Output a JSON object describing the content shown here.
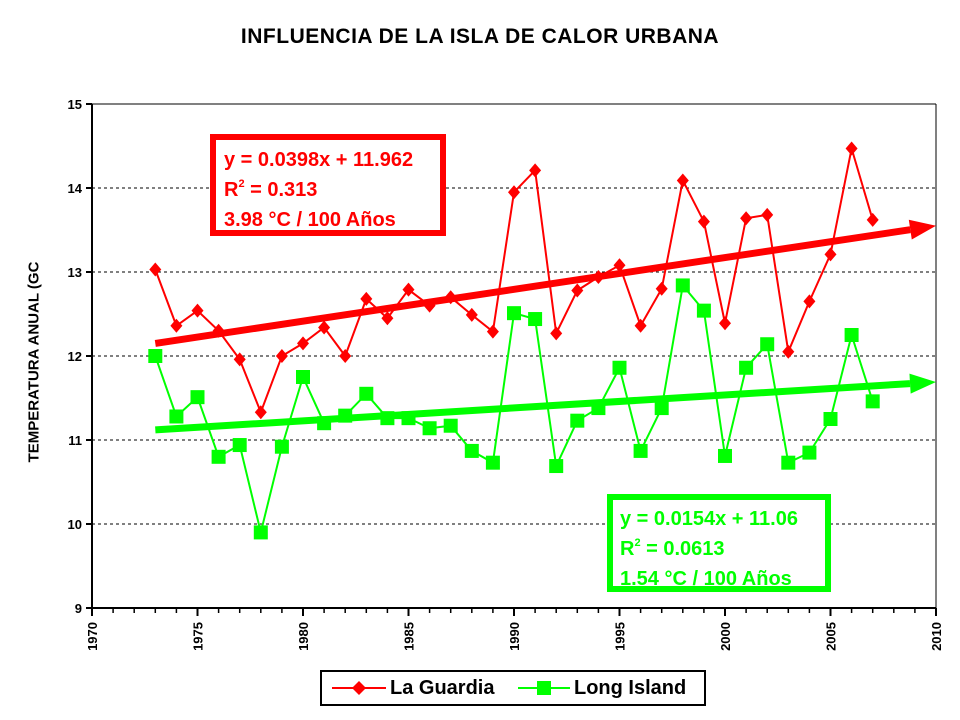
{
  "chart_data": {
    "type": "line",
    "title": "INFLUENCIA DE LA ISLA DE CALOR URBANA",
    "ylabel": "TEMPERATURA ANUAL (GC",
    "xlabel": "",
    "xlim": [
      1970,
      2010
    ],
    "ylim": [
      9,
      15
    ],
    "x_ticks": [
      "1970",
      "1975",
      "1980",
      "1985",
      "1990",
      "1995",
      "2000",
      "2005",
      "2010"
    ],
    "y_ticks": [
      "9",
      "10",
      "11",
      "12",
      "13",
      "14",
      "15"
    ],
    "grid": "horizontal dashed",
    "legend_position": "bottom",
    "series": [
      {
        "name": "La Guardia",
        "color": "#ff0000",
        "marker": "diamond",
        "x": [
          1973,
          1974,
          1975,
          1976,
          1977,
          1978,
          1979,
          1980,
          1981,
          1982,
          1983,
          1984,
          1985,
          1986,
          1987,
          1988,
          1989,
          1990,
          1991,
          1992,
          1993,
          1994,
          1995,
          1996,
          1997,
          1998,
          1999,
          2000,
          2001,
          2002,
          2003,
          2004,
          2005,
          2006,
          2007
        ],
        "values": [
          13.03,
          12.36,
          12.54,
          12.3,
          11.96,
          11.33,
          12.0,
          12.15,
          12.34,
          12.0,
          12.68,
          12.45,
          12.79,
          12.6,
          12.7,
          12.49,
          12.29,
          13.95,
          14.21,
          12.27,
          12.78,
          12.94,
          13.08,
          12.36,
          12.8,
          14.09,
          13.6,
          12.39,
          13.64,
          13.68,
          12.05,
          12.65,
          13.21,
          14.47,
          13.62
        ]
      },
      {
        "name": "Long Island",
        "color": "#00ff00",
        "marker": "square",
        "x": [
          1973,
          1974,
          1975,
          1976,
          1977,
          1978,
          1979,
          1980,
          1981,
          1982,
          1983,
          1984,
          1985,
          1986,
          1987,
          1988,
          1989,
          1990,
          1991,
          1992,
          1993,
          1994,
          1995,
          1996,
          1997,
          1998,
          1999,
          2000,
          2001,
          2002,
          2003,
          2004,
          2005,
          2006,
          2007
        ],
        "values": [
          12.0,
          11.28,
          11.51,
          10.8,
          10.94,
          9.9,
          10.92,
          11.75,
          11.2,
          11.29,
          11.55,
          11.26,
          11.26,
          11.14,
          11.17,
          10.87,
          10.73,
          12.51,
          12.44,
          10.69,
          11.23,
          11.38,
          11.86,
          10.87,
          11.38,
          12.84,
          12.54,
          10.81,
          11.86,
          12.14,
          10.73,
          10.85,
          11.25,
          12.25,
          11.46
        ]
      }
    ],
    "trendlines": [
      {
        "series": "La Guardia",
        "color": "#ff0000",
        "x": [
          1973,
          2010
        ],
        "values": [
          12.15,
          13.55
        ],
        "equation": "y = 0.0398x + 11.962",
        "r2_label": "R",
        "r2_sup": "2",
        "r2_value": " = 0.313",
        "rate": "3.98 °C / 100 Años"
      },
      {
        "series": "Long Island",
        "color": "#00ff00",
        "x": [
          1973,
          2010
        ],
        "values": [
          11.12,
          11.69
        ],
        "equation": "y = 0.0154x + 11.06",
        "r2_label": "R",
        "r2_sup": "2",
        "r2_value": " = 0.0613",
        "rate": "1.54 °C / 100 Años"
      }
    ]
  }
}
